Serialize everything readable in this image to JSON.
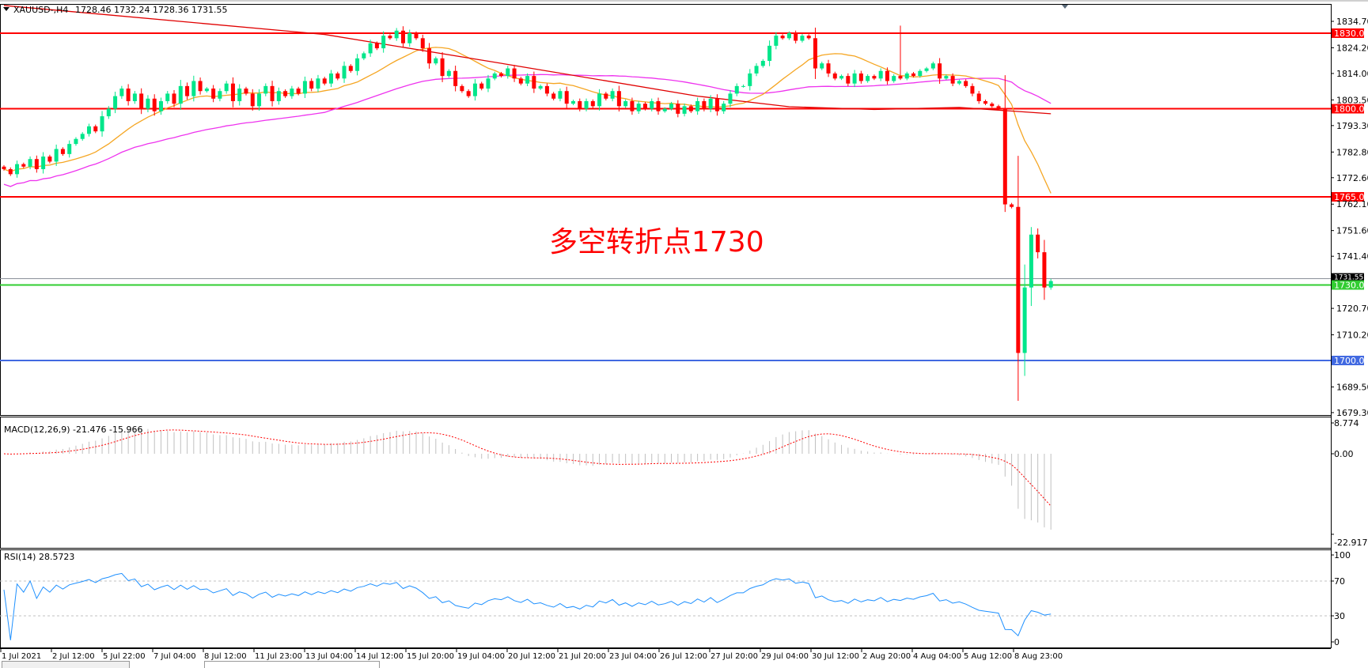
{
  "header": {
    "symbol": "XAUUSD-,H4",
    "ohlc": "1728.46 1732.24 1728.36 1731.55"
  },
  "annotation": "多空转折点1730",
  "colors": {
    "bull": "#00e68a",
    "bear": "#ff0000",
    "ma_slow": "#e00000",
    "ma_mid": "#ee33ee",
    "ma_fast": "#f5a623",
    "level_red": "#ff0000",
    "level_green": "#32cd32",
    "level_blue": "#4169e1",
    "rsi": "#1e90ff",
    "macd_hist": "#c0c0c0",
    "macd_signal": "#ff0000"
  },
  "chart_data": {
    "type": "candlestick",
    "symbol": "XAUUSD-",
    "timeframe": "H4",
    "ylim": [
      1679.3,
      1834.7
    ],
    "price_ticks": [
      "1834.70",
      "1824.20",
      "1814.00",
      "1803.50",
      "1793.30",
      "1782.80",
      "1772.60",
      "1762.10",
      "1751.60",
      "1741.40",
      "1720.70",
      "1710.20",
      "1689.50",
      "1679.30"
    ],
    "current_price": "1731.55",
    "levels": [
      {
        "price": 1830,
        "label": "1830.00",
        "color": "red"
      },
      {
        "price": 1800,
        "label": "1800.00",
        "color": "red"
      },
      {
        "price": 1765,
        "label": "1765.00",
        "color": "red"
      },
      {
        "price": 1730,
        "label": "1730.00",
        "color": "green"
      },
      {
        "price": 1700,
        "label": "1700.00",
        "color": "blue"
      }
    ],
    "first_open": 1777,
    "closes": [
      1776,
      1774,
      1778,
      1777,
      1780,
      1776,
      1781,
      1779,
      1784,
      1782,
      1786,
      1788,
      1790,
      1793,
      1791,
      1797,
      1800,
      1805,
      1808,
      1803,
      1806,
      1800,
      1804,
      1799,
      1803,
      1806,
      1802,
      1809,
      1805,
      1811,
      1807,
      1808,
      1804,
      1807,
      1810,
      1803,
      1808,
      1806,
      1801,
      1806,
      1809,
      1803,
      1807,
      1805,
      1808,
      1806,
      1811,
      1808,
      1812,
      1810,
      1814,
      1812,
      1817,
      1815,
      1820,
      1822,
      1826,
      1824,
      1829,
      1828,
      1831,
      1826,
      1830,
      1828,
      1824,
      1818,
      1820,
      1813,
      1815,
      1809,
      1807,
      1805,
      1810,
      1808,
      1812,
      1814,
      1813,
      1816,
      1812,
      1810,
      1813,
      1808,
      1809,
      1806,
      1804,
      1807,
      1802,
      1803,
      1800,
      1803,
      1801,
      1806,
      1804,
      1807,
      1801,
      1803,
      1799,
      1802,
      1800,
      1803,
      1799,
      1800,
      1802,
      1798,
      1801,
      1799,
      1803,
      1800,
      1804,
      1799,
      1802,
      1806,
      1809,
      1809,
      1814,
      1817,
      1819,
      1825,
      1829,
      1828,
      1830,
      1827,
      1829,
      1828,
      1816,
      1818,
      1814,
      1812,
      1813,
      1810,
      1814,
      1811,
      1813,
      1812,
      1815,
      1811,
      1813,
      1812,
      1814,
      1813,
      1815,
      1816,
      1818,
      1812,
      1813,
      1810,
      1811,
      1809,
      1806,
      1803,
      1802,
      1801,
      1800,
      1762,
      1761,
      1703,
      1729,
      1750,
      1743,
      1729,
      1731.55
    ],
    "notable_lows": [
      {
        "bar": 155,
        "low": 1684
      },
      {
        "bar": 153,
        "low": 1759
      }
    ],
    "notable_highs": [
      {
        "bar": 137,
        "high": 1833
      },
      {
        "bar": 157,
        "high": 1753
      }
    ],
    "ma_slow": [
      [
        0,
        1841
      ],
      [
        49,
        1829.5
      ],
      [
        77,
        1817.6
      ],
      [
        106,
        1805
      ],
      [
        120,
        1800.8
      ],
      [
        133,
        1799.7
      ],
      [
        146,
        1800.5
      ],
      [
        160,
        1798
      ]
    ],
    "time_labels": [
      "1 Jul 2021",
      "2 Jul 12:00",
      "5 Jul 22:00",
      "7 Jul 04:00",
      "8 Jul 12:00",
      "11 Jul 23:00",
      "13 Jul 04:00",
      "14 Jul 12:00",
      "15 Jul 20:00",
      "19 Jul 04:00",
      "20 Jul 12:00",
      "21 Jul 20:00",
      "23 Jul 04:00",
      "26 Jul 12:00",
      "27 Jul 20:00",
      "29 Jul 04:00",
      "30 Jul 12:00",
      "2 Aug 20:00",
      "4 Aug 04:00",
      "5 Aug 12:00",
      "8 Aug 23:00"
    ],
    "macd": {
      "label": "MACD(12,26,9) -21.476 -15.966",
      "ticks": [
        "8.774",
        "0.00",
        "-22.917"
      ],
      "ylim": [
        -22.917,
        8.774
      ]
    },
    "rsi": {
      "label": "RSI(14) 28.5723",
      "ticks": [
        "100",
        "70",
        "30",
        "0"
      ],
      "levels": [
        70,
        30
      ]
    }
  }
}
